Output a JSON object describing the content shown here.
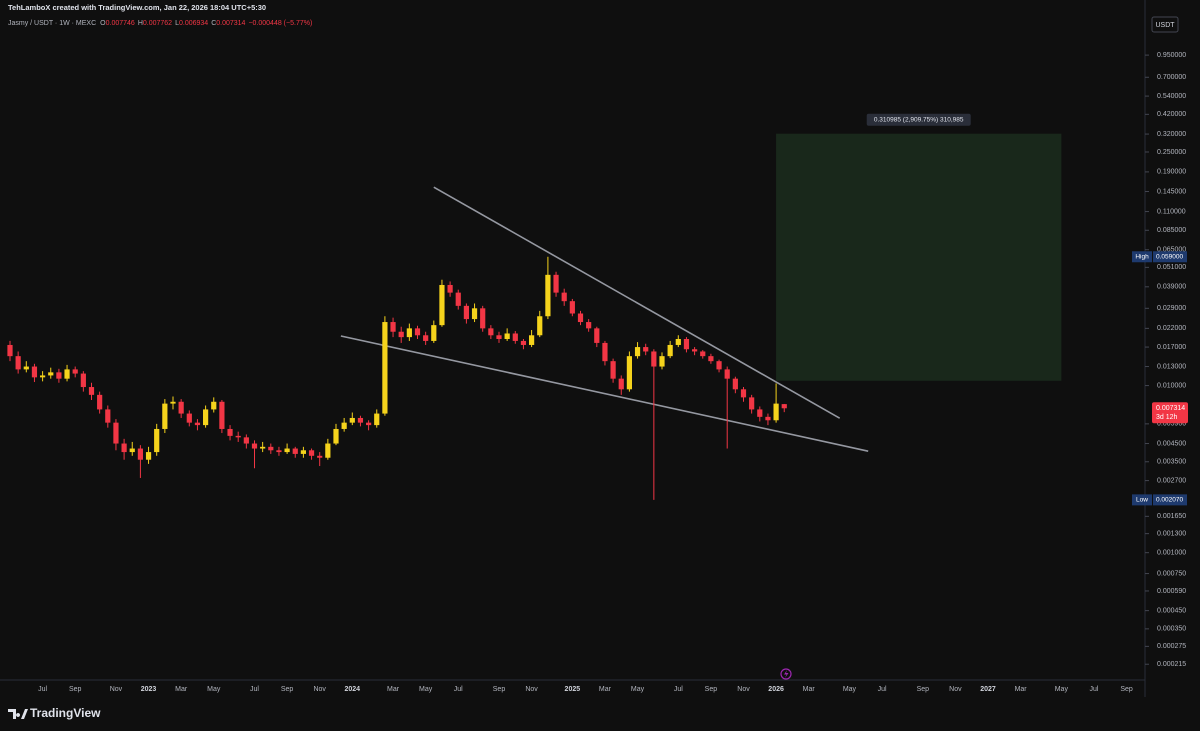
{
  "header": {
    "author_line": "TehLamboX created with TradingView.com, Jan 22, 2026 18:04 UTC+5:30"
  },
  "chart_data": {
    "type": "candlestick",
    "symbol": "Jasmy / USDT · 1W · MEXC",
    "ohlc_prefixes": [
      "O",
      "H",
      "L",
      "C"
    ],
    "change": "−0.000448 (−5.77%)",
    "currency": "USDT",
    "log_scale": true,
    "grid": false,
    "up_color": "#f5d31c",
    "down_color": "#f23645",
    "categories": [
      null,
      null,
      null,
      null,
      "Jul",
      null,
      null,
      null,
      "Sep",
      null,
      null,
      null,
      null,
      "Nov",
      null,
      null,
      null,
      "2023",
      null,
      null,
      null,
      "Mar",
      null,
      null,
      null,
      "May",
      null,
      null,
      null,
      null,
      "Jul",
      null,
      null,
      null,
      "Sep",
      null,
      null,
      null,
      "Nov",
      null,
      null,
      null,
      "2024",
      null,
      null,
      null,
      null,
      "Mar",
      null,
      null,
      null,
      "May",
      null,
      null,
      null,
      "Jul",
      null,
      null,
      null,
      null,
      "Sep",
      null,
      null,
      null,
      "Nov",
      null,
      null,
      null,
      null,
      "2025",
      null,
      null,
      null,
      "Mar",
      null,
      null,
      null,
      "May",
      null,
      null,
      null,
      null,
      "Jul",
      null,
      null,
      null,
      "Sep",
      null,
      null,
      null,
      "Nov",
      null,
      null,
      null,
      "2026",
      null,
      null,
      null,
      "Mar",
      null,
      null,
      null,
      null,
      "May",
      null,
      null,
      null,
      "Jul",
      null,
      null,
      null,
      null,
      "Sep",
      null,
      null,
      null,
      "Nov",
      null,
      null,
      null,
      "2027",
      null,
      null,
      null,
      "Mar",
      null,
      null,
      null,
      null,
      "May",
      null,
      null,
      null,
      "Jul",
      null,
      null,
      null,
      "Sep",
      null,
      null
    ],
    "candles": [
      [
        0.0175,
        0.0185,
        0.014,
        0.015
      ],
      [
        0.015,
        0.016,
        0.0118,
        0.0125
      ],
      [
        0.0125,
        0.014,
        0.012,
        0.013
      ],
      [
        0.013,
        0.0135,
        0.0105,
        0.0112
      ],
      [
        0.0112,
        0.0122,
        0.0106,
        0.0115
      ],
      [
        0.0115,
        0.0128,
        0.011,
        0.012
      ],
      [
        0.012,
        0.0126,
        0.0104,
        0.011
      ],
      [
        0.011,
        0.0133,
        0.0106,
        0.0125
      ],
      [
        0.0125,
        0.013,
        0.0112,
        0.0118
      ],
      [
        0.0118,
        0.0122,
        0.0092,
        0.0098
      ],
      [
        0.0098,
        0.0104,
        0.0082,
        0.0088
      ],
      [
        0.0088,
        0.0092,
        0.0068,
        0.0072
      ],
      [
        0.0072,
        0.0076,
        0.0056,
        0.006
      ],
      [
        0.006,
        0.0063,
        0.0041,
        0.0045
      ],
      [
        0.0045,
        0.0048,
        0.0036,
        0.004
      ],
      [
        0.004,
        0.0046,
        0.0038,
        0.0042
      ],
      [
        0.0042,
        0.0044,
        0.0028,
        0.0036
      ],
      [
        0.0036,
        0.0043,
        0.0034,
        0.004
      ],
      [
        0.004,
        0.0059,
        0.0038,
        0.0055
      ],
      [
        0.0055,
        0.0083,
        0.0052,
        0.0078
      ],
      [
        0.0078,
        0.0086,
        0.0072,
        0.008
      ],
      [
        0.008,
        0.0083,
        0.0064,
        0.0068
      ],
      [
        0.0068,
        0.0071,
        0.0057,
        0.006
      ],
      [
        0.006,
        0.0063,
        0.0054,
        0.0058
      ],
      [
        0.0058,
        0.0076,
        0.0056,
        0.0072
      ],
      [
        0.0072,
        0.0085,
        0.0069,
        0.008
      ],
      [
        0.008,
        0.0082,
        0.0052,
        0.0055
      ],
      [
        0.0055,
        0.0058,
        0.0047,
        0.005
      ],
      [
        0.005,
        0.0053,
        0.0046,
        0.0049
      ],
      [
        0.0049,
        0.0051,
        0.0042,
        0.0045
      ],
      [
        0.0045,
        0.0047,
        0.0032,
        0.0042
      ],
      [
        0.0042,
        0.0046,
        0.004,
        0.0043
      ],
      [
        0.0043,
        0.0045,
        0.0039,
        0.0041
      ],
      [
        0.0041,
        0.0043,
        0.0038,
        0.004
      ],
      [
        0.004,
        0.0045,
        0.0039,
        0.0042
      ],
      [
        0.0042,
        0.0043,
        0.0037,
        0.0039
      ],
      [
        0.0039,
        0.0043,
        0.0037,
        0.0041
      ],
      [
        0.0041,
        0.0042,
        0.0036,
        0.0038
      ],
      [
        0.0038,
        0.004,
        0.0033,
        0.0037
      ],
      [
        0.0037,
        0.0048,
        0.0036,
        0.0045
      ],
      [
        0.0045,
        0.0059,
        0.0044,
        0.0055
      ],
      [
        0.0055,
        0.0064,
        0.0053,
        0.006
      ],
      [
        0.006,
        0.0069,
        0.0058,
        0.0064
      ],
      [
        0.0064,
        0.0066,
        0.0057,
        0.006
      ],
      [
        0.006,
        0.0062,
        0.0054,
        0.0058
      ],
      [
        0.0058,
        0.0072,
        0.0056,
        0.0068
      ],
      [
        0.0068,
        0.026,
        0.0066,
        0.024
      ],
      [
        0.024,
        0.0255,
        0.0195,
        0.021
      ],
      [
        0.021,
        0.0225,
        0.018,
        0.0195
      ],
      [
        0.0195,
        0.0235,
        0.0185,
        0.022
      ],
      [
        0.022,
        0.0228,
        0.019,
        0.02
      ],
      [
        0.02,
        0.021,
        0.0175,
        0.0185
      ],
      [
        0.0185,
        0.0245,
        0.018,
        0.023
      ],
      [
        0.023,
        0.043,
        0.0225,
        0.04
      ],
      [
        0.04,
        0.042,
        0.034,
        0.036
      ],
      [
        0.036,
        0.0375,
        0.0285,
        0.03
      ],
      [
        0.03,
        0.031,
        0.0235,
        0.025
      ],
      [
        0.025,
        0.031,
        0.024,
        0.029
      ],
      [
        0.029,
        0.03,
        0.021,
        0.022
      ],
      [
        0.022,
        0.023,
        0.019,
        0.02
      ],
      [
        0.02,
        0.021,
        0.018,
        0.019
      ],
      [
        0.019,
        0.022,
        0.0185,
        0.0205
      ],
      [
        0.0205,
        0.0212,
        0.0178,
        0.0185
      ],
      [
        0.0185,
        0.019,
        0.0165,
        0.0175
      ],
      [
        0.0175,
        0.0215,
        0.017,
        0.02
      ],
      [
        0.02,
        0.028,
        0.0195,
        0.026
      ],
      [
        0.026,
        0.059,
        0.025,
        0.046
      ],
      [
        0.046,
        0.048,
        0.034,
        0.036
      ],
      [
        0.036,
        0.038,
        0.03,
        0.032
      ],
      [
        0.032,
        0.033,
        0.026,
        0.027
      ],
      [
        0.027,
        0.028,
        0.023,
        0.024
      ],
      [
        0.024,
        0.025,
        0.021,
        0.022
      ],
      [
        0.022,
        0.0225,
        0.017,
        0.018
      ],
      [
        0.018,
        0.0185,
        0.0132,
        0.014
      ],
      [
        0.014,
        0.0145,
        0.0104,
        0.011
      ],
      [
        0.011,
        0.0115,
        0.0088,
        0.0095
      ],
      [
        0.0095,
        0.016,
        0.0092,
        0.015
      ],
      [
        0.015,
        0.0182,
        0.0145,
        0.017
      ],
      [
        0.017,
        0.0178,
        0.0152,
        0.016
      ],
      [
        0.016,
        0.0165,
        0.00207,
        0.013
      ],
      [
        0.013,
        0.0158,
        0.0125,
        0.015
      ],
      [
        0.015,
        0.0185,
        0.0146,
        0.0175
      ],
      [
        0.0175,
        0.02,
        0.017,
        0.019
      ],
      [
        0.019,
        0.0195,
        0.0158,
        0.0165
      ],
      [
        0.0165,
        0.017,
        0.0152,
        0.016
      ],
      [
        0.016,
        0.0163,
        0.0145,
        0.015
      ],
      [
        0.015,
        0.0155,
        0.0135,
        0.014
      ],
      [
        0.014,
        0.0143,
        0.012,
        0.0125
      ],
      [
        0.0125,
        0.013,
        0.0042,
        0.011
      ],
      [
        0.011,
        0.0113,
        0.009,
        0.0095
      ],
      [
        0.0095,
        0.0098,
        0.008,
        0.0085
      ],
      [
        0.0085,
        0.0088,
        0.0068,
        0.0072
      ],
      [
        0.0072,
        0.0075,
        0.0061,
        0.0065
      ],
      [
        0.0065,
        0.0068,
        0.0058,
        0.0062
      ],
      [
        0.0062,
        0.0103,
        0.006,
        0.0078
      ],
      [
        0.007746,
        0.007762,
        0.006934,
        0.007314
      ],
      null,
      null,
      null,
      null,
      null,
      null,
      null,
      null,
      null,
      null,
      null,
      null,
      null,
      null,
      null,
      null,
      null,
      null,
      null,
      null,
      null,
      null,
      null,
      null,
      null,
      null,
      null,
      null,
      null,
      null,
      null,
      null,
      null,
      null,
      null,
      null,
      null,
      null,
      null,
      null,
      null,
      null,
      null,
      null
    ],
    "ylim": [
      0.000173,
      2.03
    ],
    "yticks": [
      {
        "value": 0.95,
        "label": "0.950000"
      },
      {
        "value": 0.7,
        "label": "0.700000"
      },
      {
        "value": 0.54,
        "label": "0.540000"
      },
      {
        "value": 0.42,
        "label": "0.420000"
      },
      {
        "value": 0.32,
        "label": "0.320000"
      },
      {
        "value": 0.25,
        "label": "0.250000"
      },
      {
        "value": 0.19,
        "label": "0.190000"
      },
      {
        "value": 0.145,
        "label": "0.145000"
      },
      {
        "value": 0.11,
        "label": "0.110000"
      },
      {
        "value": 0.085,
        "label": "0.085000"
      },
      {
        "value": 0.065,
        "label": "0.065000"
      },
      {
        "value": 0.051,
        "label": "0.051000"
      },
      {
        "value": 0.039,
        "label": "0.039000"
      },
      {
        "value": 0.029,
        "label": "0.029000"
      },
      {
        "value": 0.022,
        "label": "0.022000"
      },
      {
        "value": 0.017,
        "label": "0.017000"
      },
      {
        "value": 0.013,
        "label": "0.013000"
      },
      {
        "value": 0.01,
        "label": "0.010000"
      },
      {
        "value": 0.0059,
        "label": "0.005900"
      },
      {
        "value": 0.0045,
        "label": "0.004500"
      },
      {
        "value": 0.0035,
        "label": "0.003500"
      },
      {
        "value": 0.0027,
        "label": "0.002700"
      },
      {
        "value": 0.00165,
        "label": "0.001650"
      },
      {
        "value": 0.0013,
        "label": "0.001300"
      },
      {
        "value": 0.001,
        "label": "0.001000"
      },
      {
        "value": 0.00075,
        "label": "0.000750"
      },
      {
        "value": 0.00059,
        "label": "0.000590"
      },
      {
        "value": 0.00045,
        "label": "0.000450"
      },
      {
        "value": 0.00035,
        "label": "0.000350"
      },
      {
        "value": 0.000275,
        "label": "0.000275"
      },
      {
        "value": 0.000215,
        "label": "0.000215"
      }
    ],
    "high": {
      "name": "High",
      "value": 0.059,
      "value_label": "0.059000"
    },
    "low": {
      "name": "Low",
      "value": 0.00207,
      "value_label": "0.002070"
    },
    "countdown": "3d 12h",
    "trendlines": [
      {
        "x": [
          52.0,
          101.8
        ],
        "y": [
          0.154,
          0.00638
        ]
      },
      {
        "x": [
          40.6,
          105.3
        ],
        "y": [
          0.0198,
          0.00405
        ]
      }
    ],
    "measure": {
      "label": "0.310985 (2,909.75%) 310,985",
      "x": [
        94,
        129
      ],
      "top": 0.321673,
      "bottom": 0.010688
    }
  },
  "footer": {
    "brand": "TradingView"
  }
}
